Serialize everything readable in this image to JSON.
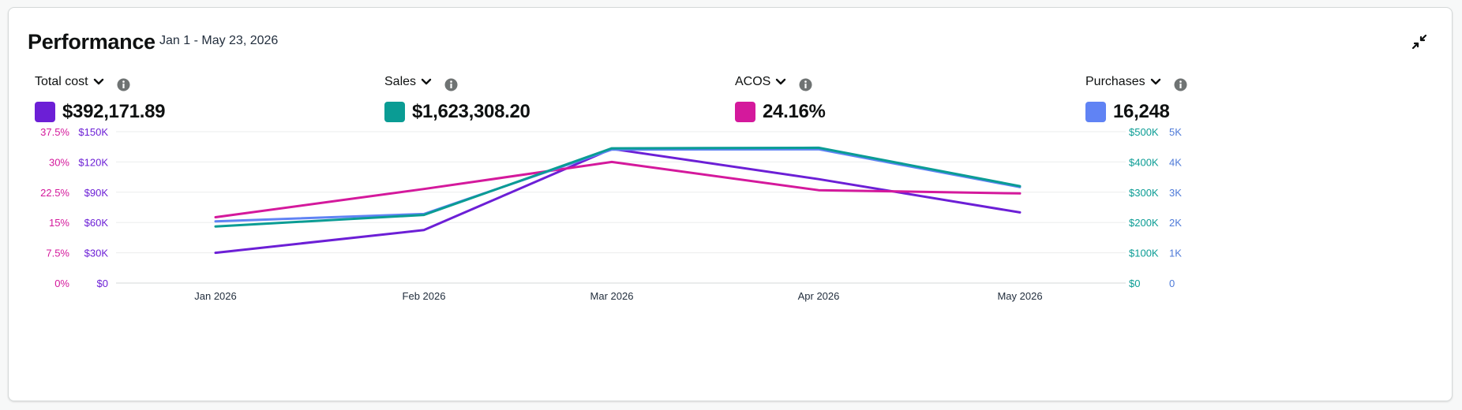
{
  "header": {
    "title": "Performance",
    "date_range": "Jan 1 - May 23, 2026",
    "collapse_icon": "collapse-arrows-icon"
  },
  "metrics": [
    {
      "label": "Total cost",
      "value": "$392,171.89",
      "color": "#6c1fd6"
    },
    {
      "label": "Sales",
      "value": "$1,623,308.20",
      "color": "#0a9c94"
    },
    {
      "label": "ACOS",
      "value": "24.16%",
      "color": "#d4199c"
    },
    {
      "label": "Purchases",
      "value": "16,248",
      "color": "#6083f4"
    }
  ],
  "icons": {
    "dropdown": "chevron-down-icon",
    "info": "info-icon"
  },
  "chart_data": {
    "type": "line",
    "categories": [
      "Jan 2026",
      "Feb 2026",
      "Mar 2026",
      "Apr 2026",
      "May 2026"
    ],
    "axes": [
      {
        "id": "acos",
        "side": "left",
        "ticks": [
          "0%",
          "7.5%",
          "15%",
          "22.5%",
          "30%",
          "37.5%"
        ],
        "range": [
          0,
          37.5
        ],
        "color": "#d4199c"
      },
      {
        "id": "cost",
        "side": "left",
        "ticks": [
          "$0",
          "$30K",
          "$60K",
          "$90K",
          "$120K",
          "$150K"
        ],
        "range": [
          0,
          150000
        ],
        "color": "#6c1fd6"
      },
      {
        "id": "sales",
        "side": "right",
        "ticks": [
          "$0",
          "$100K",
          "$200K",
          "$300K",
          "$400K",
          "$500K"
        ],
        "range": [
          0,
          500000
        ],
        "color": "#0a9c94"
      },
      {
        "id": "purchases",
        "side": "right",
        "ticks": [
          "0",
          "1K",
          "2K",
          "3K",
          "4K",
          "5K"
        ],
        "range": [
          0,
          5000
        ],
        "color": "#4f7bd8"
      }
    ],
    "series": [
      {
        "axis": "cost",
        "color": "#6c1fd6",
        "values": [
          30000,
          52500,
          133000,
          103000,
          70000
        ]
      },
      {
        "axis": "acos",
        "color": "#d4199c",
        "values": [
          16.3,
          23.3,
          30,
          23,
          22.2
        ]
      },
      {
        "axis": "purchases",
        "color": "#6083f4",
        "values": [
          2040,
          2280,
          4410,
          4420,
          3170
        ]
      },
      {
        "axis": "sales",
        "color": "#0a9c94",
        "values": [
          187000,
          225000,
          445000,
          447000,
          320000
        ]
      }
    ],
    "grid": true
  }
}
